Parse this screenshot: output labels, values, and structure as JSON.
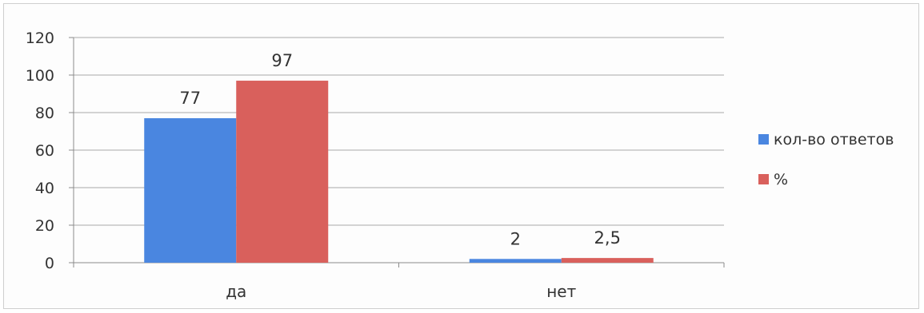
{
  "chart_data": {
    "type": "bar",
    "categories": [
      "да",
      "нет"
    ],
    "series": [
      {
        "name": "кол-во ответов",
        "values": [
          77,
          2
        ],
        "labels": [
          "77",
          "2"
        ]
      },
      {
        "name": "%",
        "values": [
          97,
          2.5
        ],
        "labels": [
          "97",
          "2,5"
        ]
      }
    ],
    "ylim": [
      0,
      120
    ],
    "yticks": [
      0,
      20,
      40,
      60,
      80,
      100,
      120
    ],
    "grid": true,
    "legend_position": "right",
    "colors": [
      "#4a86e0",
      "#d9605c"
    ]
  }
}
